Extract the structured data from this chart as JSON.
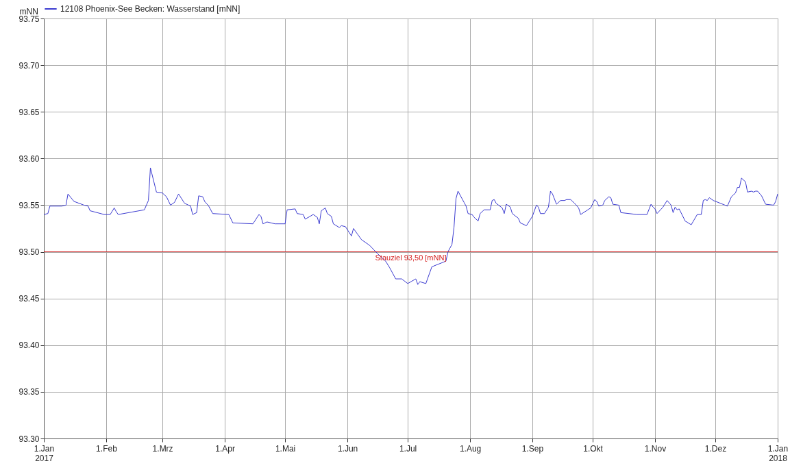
{
  "chart_data": {
    "type": "line",
    "ylabel": "mNN",
    "legend": "top left",
    "grid": true,
    "line_style": "solid",
    "marker": "none",
    "xlim": [
      "2017-01-01",
      "2018-01-01"
    ],
    "xticks": [
      {
        "value": "2017-01-01",
        "label": "1.Jan\n2017"
      },
      {
        "value": "2017-02-01",
        "label": "1.Feb"
      },
      {
        "value": "2017-03-01",
        "label": "1.Mrz"
      },
      {
        "value": "2017-04-01",
        "label": "1.Apr"
      },
      {
        "value": "2017-05-01",
        "label": "1.Mai"
      },
      {
        "value": "2017-06-01",
        "label": "1.Jun"
      },
      {
        "value": "2017-07-01",
        "label": "1.Jul"
      },
      {
        "value": "2017-08-01",
        "label": "1.Aug"
      },
      {
        "value": "2017-09-01",
        "label": "1.Sep"
      },
      {
        "value": "2017-10-01",
        "label": "1.Okt"
      },
      {
        "value": "2017-11-01",
        "label": "1.Nov"
      },
      {
        "value": "2017-12-01",
        "label": "1.Dez"
      },
      {
        "value": "2018-01-01",
        "label": "1.Jan\n2018"
      }
    ],
    "ylim": [
      93.3,
      93.75
    ],
    "yticks": [
      {
        "value": 93.3,
        "label": "93.30"
      },
      {
        "value": 93.35,
        "label": "93.35"
      },
      {
        "value": 93.4,
        "label": "93.40"
      },
      {
        "value": 93.45,
        "label": "93.45"
      },
      {
        "value": 93.5,
        "label": "93.50"
      },
      {
        "value": 93.55,
        "label": "93.55"
      },
      {
        "value": 93.6,
        "label": "93.60"
      },
      {
        "value": 93.65,
        "label": "93.65"
      },
      {
        "value": 93.7,
        "label": "93.70"
      },
      {
        "value": 93.75,
        "label": "93.75"
      }
    ],
    "ref_lines": [
      {
        "axis": "y",
        "value": 93.5,
        "label": "Stauziel 93,50 [mNN]",
        "color": "#d42020"
      }
    ],
    "x": [
      "2017-01-01",
      "2017-01-03",
      "2017-01-04",
      "2017-01-10",
      "2017-01-12",
      "2017-01-13",
      "2017-01-16",
      "2017-01-21",
      "2017-01-23",
      "2017-01-24",
      "2017-01-31",
      "2017-02-03",
      "2017-02-05",
      "2017-02-06",
      "2017-02-07",
      "2017-02-20",
      "2017-02-22",
      "2017-02-23",
      "2017-02-26",
      "2017-03-01",
      "2017-03-03",
      "2017-03-05",
      "2017-03-07",
      "2017-03-09",
      "2017-03-12",
      "2017-03-15",
      "2017-03-16",
      "2017-03-18",
      "2017-03-19",
      "2017-03-21",
      "2017-03-22",
      "2017-03-24",
      "2017-03-26",
      "2017-04-03",
      "2017-04-05",
      "2017-04-15",
      "2017-04-18",
      "2017-04-19",
      "2017-04-20",
      "2017-04-22",
      "2017-04-26",
      "2017-05-01",
      "2017-05-02",
      "2017-05-06",
      "2017-05-07",
      "2017-05-10",
      "2017-05-11",
      "2017-05-15",
      "2017-05-17",
      "2017-05-18",
      "2017-05-19",
      "2017-05-21",
      "2017-05-22",
      "2017-05-24",
      "2017-05-25",
      "2017-05-28",
      "2017-05-29",
      "2017-05-31",
      "2017-06-03",
      "2017-06-04",
      "2017-06-06",
      "2017-06-08",
      "2017-06-12",
      "2017-06-16",
      "2017-06-20",
      "2017-06-22",
      "2017-06-25",
      "2017-06-28",
      "2017-07-01",
      "2017-07-05",
      "2017-07-06",
      "2017-07-07",
      "2017-07-10",
      "2017-07-13",
      "2017-07-20",
      "2017-07-21",
      "2017-07-23",
      "2017-07-24",
      "2017-07-25",
      "2017-07-26",
      "2017-07-29",
      "2017-07-30",
      "2017-07-31",
      "2017-08-02",
      "2017-08-03",
      "2017-08-05",
      "2017-08-06",
      "2017-08-08",
      "2017-08-11",
      "2017-08-12",
      "2017-08-13",
      "2017-08-14",
      "2017-08-17",
      "2017-08-18",
      "2017-08-19",
      "2017-08-21",
      "2017-08-22",
      "2017-08-25",
      "2017-08-26",
      "2017-08-29",
      "2017-09-01",
      "2017-09-03",
      "2017-09-04",
      "2017-09-05",
      "2017-09-07",
      "2017-09-09",
      "2017-09-10",
      "2017-09-11",
      "2017-09-13",
      "2017-09-15",
      "2017-09-17",
      "2017-09-18",
      "2017-09-20",
      "2017-09-22",
      "2017-09-24",
      "2017-09-25",
      "2017-09-30",
      "2017-10-02",
      "2017-10-03",
      "2017-10-04",
      "2017-10-06",
      "2017-10-07",
      "2017-10-09",
      "2017-10-10",
      "2017-10-11",
      "2017-10-14",
      "2017-10-15",
      "2017-10-23",
      "2017-10-28",
      "2017-10-30",
      "2017-10-31",
      "2017-11-01",
      "2017-11-02",
      "2017-11-05",
      "2017-11-07",
      "2017-11-09",
      "2017-11-10",
      "2017-11-11",
      "2017-11-12",
      "2017-11-13",
      "2017-11-16",
      "2017-11-19",
      "2017-11-22",
      "2017-11-24",
      "2017-11-25",
      "2017-11-26",
      "2017-11-27",
      "2017-11-28",
      "2017-11-30",
      "2017-12-07",
      "2017-12-09",
      "2017-12-11",
      "2017-12-12",
      "2017-12-13",
      "2017-12-14",
      "2017-12-16",
      "2017-12-17",
      "2017-12-19",
      "2017-12-20",
      "2017-12-21",
      "2017-12-22",
      "2017-12-24",
      "2017-12-26",
      "2017-12-30",
      "2017-12-31",
      "2018-01-01"
    ],
    "series": [
      {
        "name": "12108 Phoenix-See Becken: Wasserstand  [mNN]",
        "color": "#3a3ad0",
        "values": [
          93.54,
          93.541,
          93.549,
          93.549,
          93.55,
          93.562,
          93.554,
          93.55,
          93.549,
          93.544,
          93.54,
          93.54,
          93.547,
          93.543,
          93.54,
          93.545,
          93.555,
          93.59,
          93.564,
          93.563,
          93.559,
          93.55,
          93.553,
          93.562,
          93.552,
          93.549,
          93.54,
          93.542,
          93.56,
          93.559,
          93.554,
          93.549,
          93.541,
          93.54,
          93.531,
          93.53,
          93.54,
          93.538,
          93.53,
          93.532,
          93.53,
          93.53,
          93.545,
          93.546,
          93.541,
          93.54,
          93.535,
          93.54,
          93.537,
          93.53,
          93.544,
          93.547,
          93.541,
          93.538,
          93.53,
          93.526,
          93.528,
          93.527,
          93.517,
          93.525,
          93.519,
          93.513,
          93.507,
          93.498,
          93.49,
          93.483,
          93.471,
          93.471,
          93.466,
          93.471,
          93.465,
          93.468,
          93.466,
          93.484,
          93.49,
          93.5,
          93.508,
          93.526,
          93.557,
          93.565,
          93.553,
          93.549,
          93.541,
          93.54,
          93.537,
          93.533,
          93.541,
          93.545,
          93.545,
          93.555,
          93.556,
          93.552,
          93.547,
          93.541,
          93.551,
          93.548,
          93.541,
          93.536,
          93.531,
          93.528,
          93.538,
          93.55,
          93.548,
          93.541,
          93.541,
          93.548,
          93.565,
          93.562,
          93.551,
          93.555,
          93.555,
          93.556,
          93.556,
          93.552,
          93.547,
          93.54,
          93.547,
          93.556,
          93.554,
          93.549,
          93.55,
          93.555,
          93.559,
          93.558,
          93.551,
          93.55,
          93.542,
          93.54,
          93.54,
          93.551,
          93.548,
          93.546,
          93.541,
          93.548,
          93.555,
          93.55,
          93.542,
          93.548,
          93.545,
          93.546,
          93.533,
          93.529,
          93.54,
          93.54,
          93.555,
          93.556,
          93.555,
          93.558,
          93.555,
          93.549,
          93.559,
          93.563,
          93.569,
          93.569,
          93.579,
          93.575,
          93.564,
          93.565,
          93.564,
          93.565,
          93.565,
          93.56,
          93.551,
          93.55,
          93.554,
          93.562
        ]
      }
    ]
  }
}
